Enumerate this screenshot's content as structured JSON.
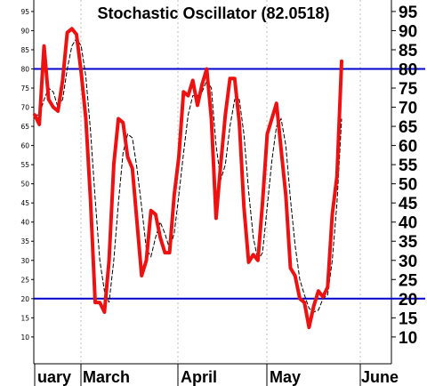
{
  "chart_data": {
    "type": "line",
    "title": "Stochastic Oscillator (82.0518)",
    "xlabel": "",
    "ylabel": "",
    "ylim": [
      3,
      98
    ],
    "grid": true,
    "x_tick_labels": [
      "uary",
      "March",
      "April",
      "May",
      "June"
    ],
    "y_ticks_left": [
      10,
      15,
      20,
      25,
      30,
      35,
      40,
      45,
      50,
      55,
      60,
      65,
      70,
      75,
      80,
      85,
      90,
      95
    ],
    "y_ticks_right": [
      10,
      15,
      20,
      25,
      30,
      35,
      40,
      45,
      50,
      55,
      60,
      65,
      70,
      75,
      80,
      85,
      90,
      95
    ],
    "reference_lines": [
      80,
      20
    ],
    "colors": {
      "main_line": "#ee1111",
      "signal_line": "#000000",
      "reference_line": "#0000cc",
      "grid": "#bdbdbd",
      "frame": "#000000"
    },
    "series": [
      {
        "values": [
          68,
          65.5,
          86,
          72,
          70,
          69,
          77,
          89.5,
          90.5,
          89,
          79,
          67,
          46,
          19,
          19,
          16.5,
          30,
          55,
          67,
          66,
          57,
          54,
          40,
          26,
          30,
          43,
          42,
          36,
          32,
          32,
          47,
          57,
          74,
          73,
          77,
          70.5,
          76,
          80,
          67,
          41,
          55,
          68,
          77.5,
          77.5,
          66,
          44,
          29.5,
          31.5,
          30,
          45,
          63,
          67,
          71,
          59,
          47,
          28,
          26,
          20,
          19,
          12.5,
          18,
          22,
          20.5,
          23,
          42,
          52,
          82
        ]
      },
      {
        "values": [
          68,
          68,
          72,
          75,
          74,
          70,
          72,
          80,
          86,
          88,
          86,
          78,
          64,
          46,
          30,
          22,
          19,
          30,
          45,
          58,
          63,
          62,
          54,
          44,
          33,
          31,
          36,
          40,
          37,
          33,
          37,
          47,
          58,
          68,
          73,
          73,
          74,
          77,
          75,
          60,
          51,
          55,
          65,
          72,
          72,
          63,
          48,
          36,
          30,
          32,
          44,
          56,
          65,
          67,
          60,
          46,
          34,
          25,
          21,
          17.5,
          16.5,
          17,
          20,
          21,
          30,
          45,
          67
        ]
      }
    ]
  }
}
